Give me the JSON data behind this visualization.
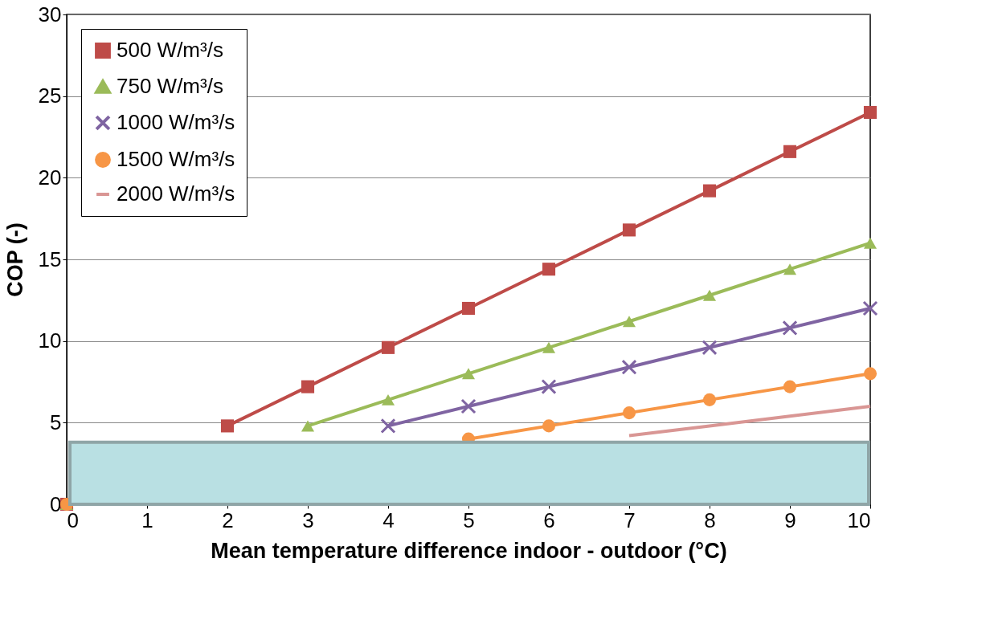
{
  "chart_data": {
    "type": "line",
    "xlabel": "Mean temperature difference indoor - outdoor (°C)",
    "ylabel": "COP (-)",
    "x": [
      0,
      1,
      2,
      3,
      4,
      5,
      6,
      7,
      8,
      9,
      10
    ],
    "series": [
      {
        "name": "500 W/m³/s",
        "color": "#be4b48",
        "marker": "square",
        "values": [
          0,
          null,
          4.8,
          7.2,
          9.6,
          12,
          14.4,
          16.8,
          19.2,
          21.6,
          24
        ]
      },
      {
        "name": "750 W/m³/s",
        "color": "#9bbb59",
        "marker": "triangle",
        "values": [
          0,
          null,
          null,
          4.8,
          6.4,
          8,
          9.6,
          11.2,
          12.8,
          14.4,
          16
        ]
      },
      {
        "name": "1000 W/m³/s",
        "color": "#7f64a2",
        "marker": "cross",
        "values": [
          null,
          null,
          null,
          null,
          4.8,
          6,
          7.2,
          8.4,
          9.6,
          10.8,
          12
        ]
      },
      {
        "name": "1500 W/m³/s",
        "color": "#f79646",
        "marker": "circle",
        "values": [
          0,
          null,
          null,
          null,
          null,
          4,
          4.8,
          5.6,
          6.4,
          7.2,
          8
        ]
      },
      {
        "name": "2000 W/m³/s",
        "color": "#d99694",
        "marker": "none",
        "values": [
          null,
          null,
          null,
          null,
          null,
          null,
          null,
          4.2,
          4.8,
          5.4,
          6
        ]
      }
    ],
    "bands": [
      {
        "axis": "y",
        "from": 0,
        "to": 3.8,
        "color": "#b9e0e3"
      }
    ],
    "xlim": [
      0,
      10
    ],
    "xticks": [
      0,
      1,
      2,
      3,
      4,
      5,
      6,
      7,
      8,
      9,
      10
    ],
    "ylim": [
      0,
      30
    ],
    "yticks": [
      0,
      5,
      10,
      15,
      20,
      25,
      30
    ],
    "grid": "y",
    "legend": "top left",
    "line_style": "solid"
  }
}
